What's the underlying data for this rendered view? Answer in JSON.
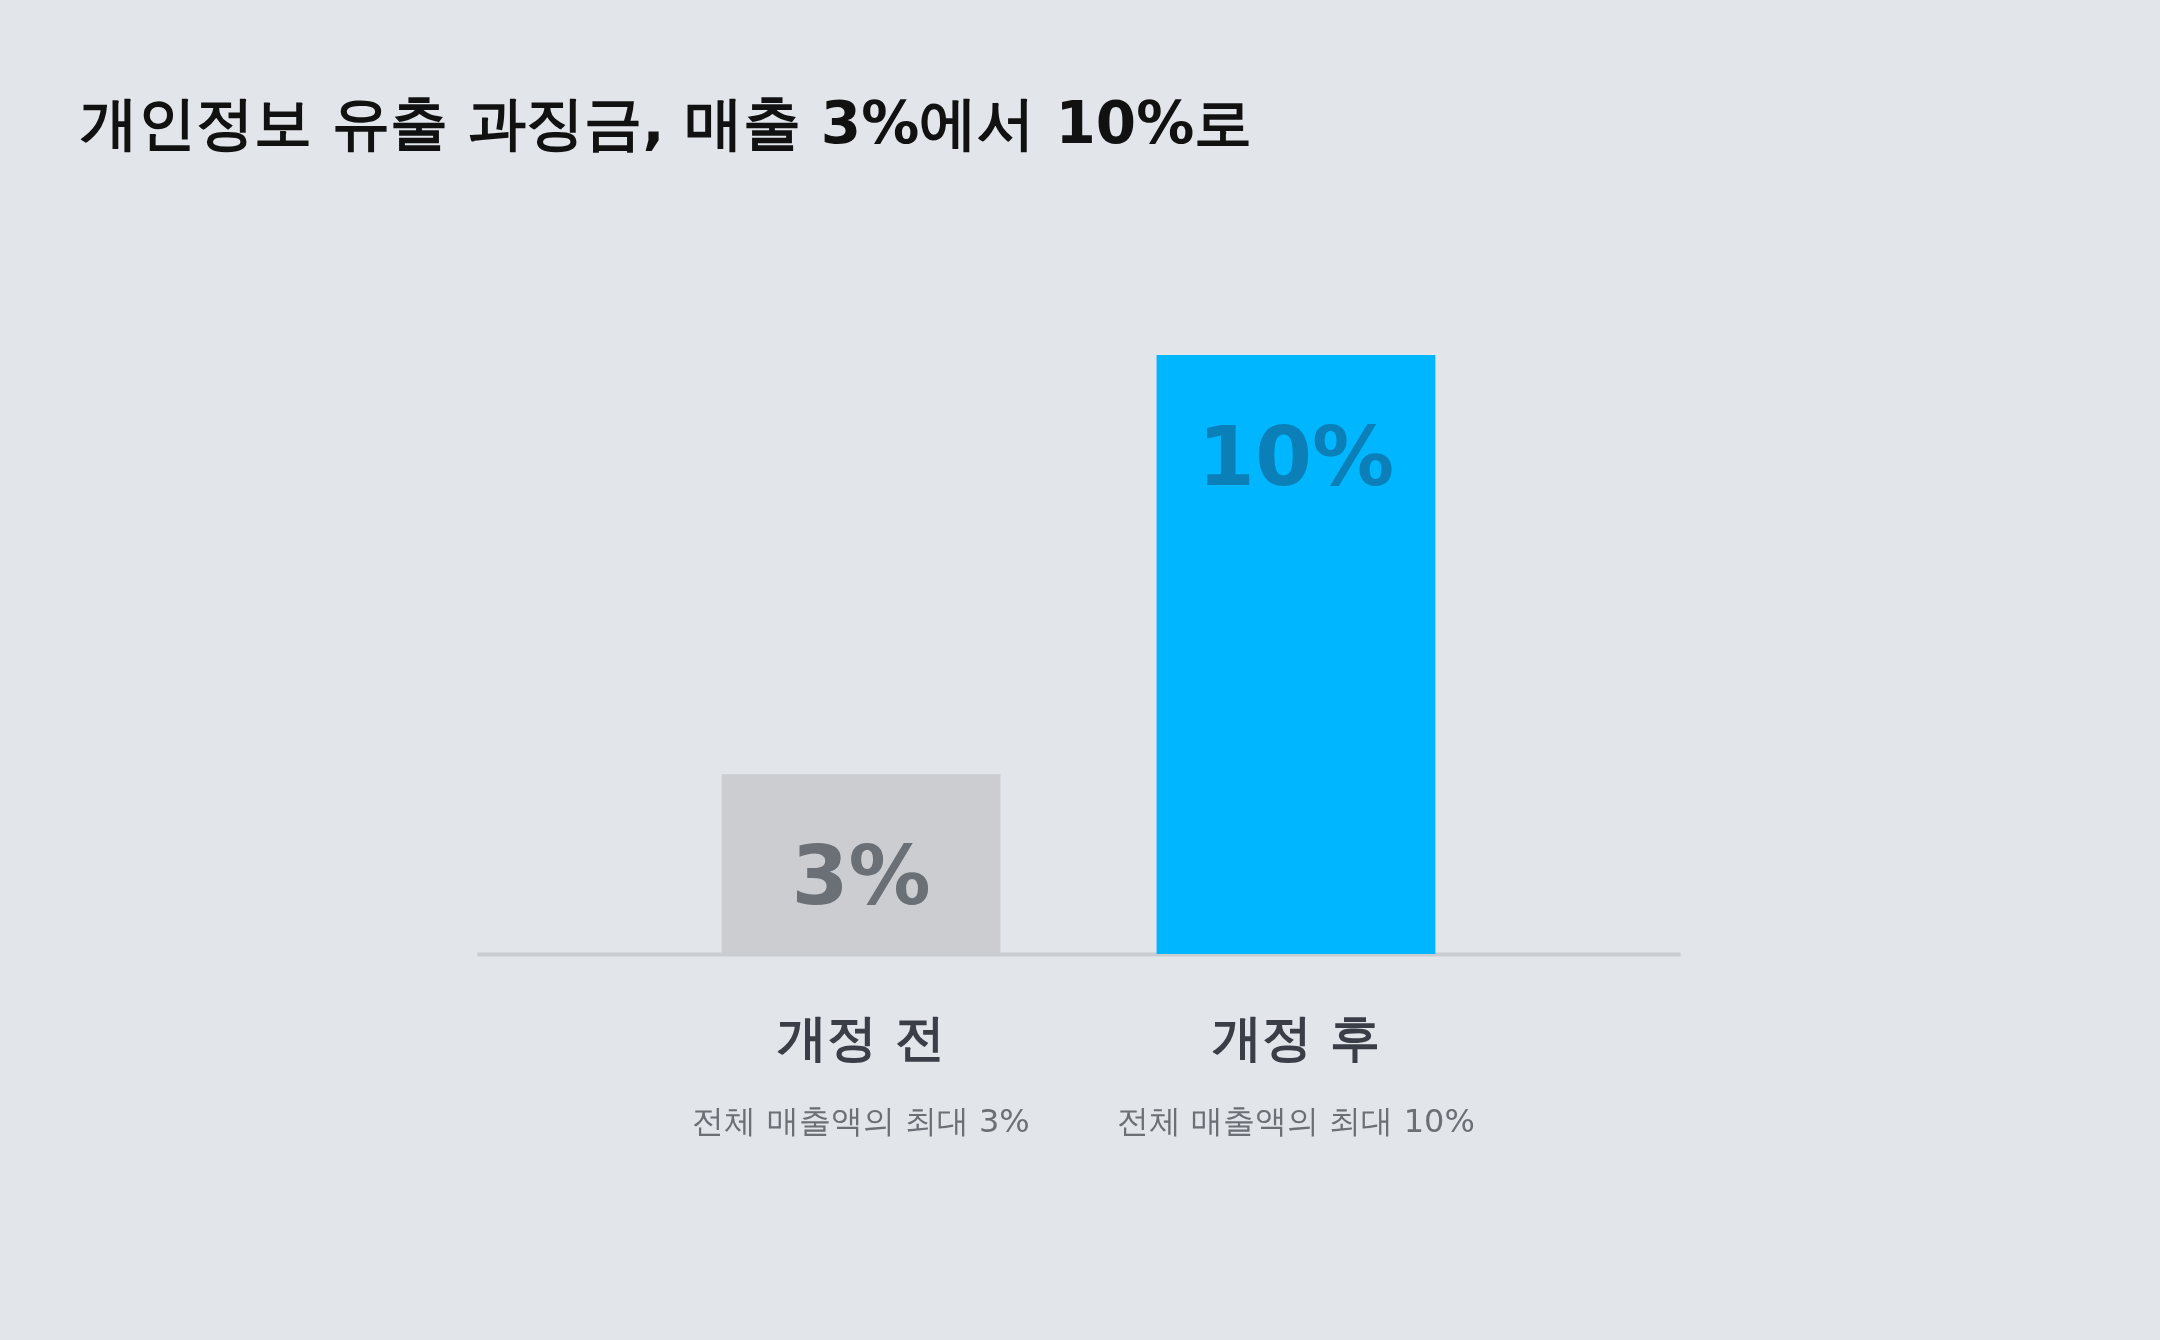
{
  "chart_data": {
    "type": "bar",
    "title": "개인정보 유출 과징금, 매출 3%에서 10%로",
    "categories": [
      "개정 전",
      "개정 후"
    ],
    "values": [
      3,
      10
    ],
    "colors": [
      "#cbcdd1",
      "#00b7ff"
    ],
    "data_labels": true,
    "value_labels": [
      "3%",
      "10%"
    ],
    "annotations": [
      "전체 매출액의 최대 3%",
      "전체 매출액의 최대 10%"
    ],
    "grid": false
  }
}
